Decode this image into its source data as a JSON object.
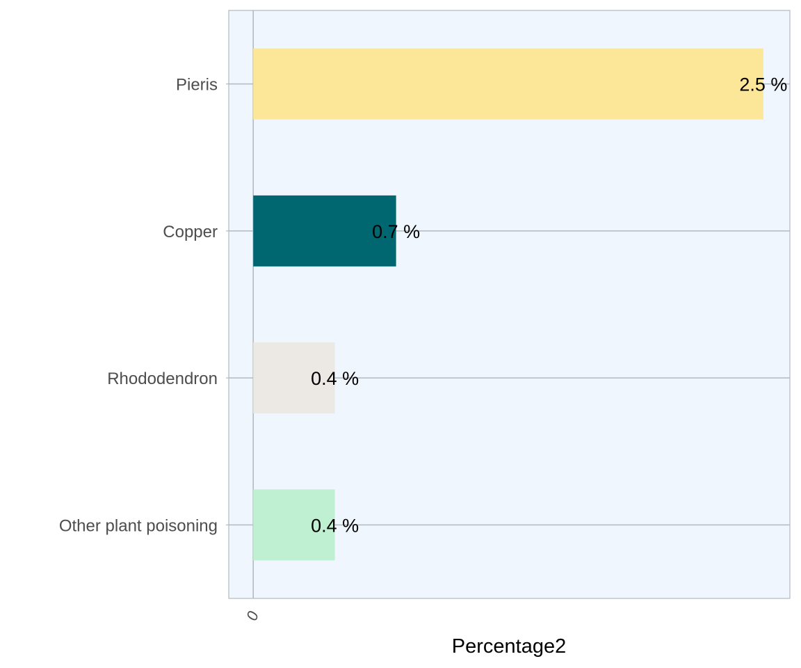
{
  "chart_data": {
    "type": "bar",
    "orientation": "horizontal",
    "categories": [
      "Pieris",
      "Copper",
      "Rhododendron",
      "Other plant poisoning"
    ],
    "values": [
      2.5,
      0.7,
      0.4,
      0.4
    ],
    "value_labels": [
      "2.5 %",
      "0.7 %",
      "0.4 %",
      "0.4 %"
    ],
    "colors": [
      "#fbe797",
      "#006770",
      "#ece8e4",
      "#bff0d2"
    ],
    "xlabel": "Percentage2",
    "ylabel": "",
    "x_ticks": [
      "0"
    ],
    "xlim": [
      -0.12,
      2.63
    ],
    "grid": true,
    "panel_background": "#eff6fd",
    "gridline_color": "#b2b9c2",
    "legend": "none"
  }
}
